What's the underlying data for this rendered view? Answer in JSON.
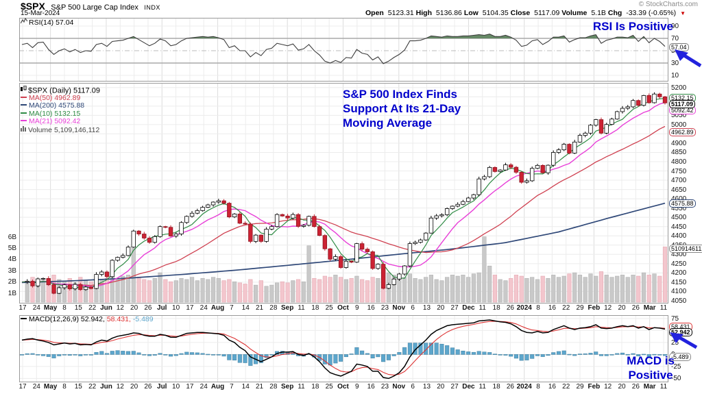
{
  "header": {
    "symbol": "$SPX",
    "name": "S&P 500 Large Cap Index",
    "exchange": "INDX",
    "date": "15-Mar-2024",
    "copyright": "© StockCharts.com",
    "quote": {
      "open_label": "Open",
      "open": "5123.31",
      "high_label": "High",
      "high": "5136.86",
      "low_label": "Low",
      "low": "5104.35",
      "close_label": "Close",
      "close": "5117.09",
      "volume_label": "Volume",
      "volume": "5.1B",
      "chg_label": "Chg",
      "chg": "-33.39 (-0.65%)",
      "chg_dir": "▼"
    }
  },
  "rsi_panel": {
    "legend": "RSI(14) 57.04",
    "annotation": "RSI Is Positive",
    "value_tag": "57.04"
  },
  "main_panel": {
    "legend_symbol": "$SPX (Daily) 5117.09",
    "legend_ma50": "MA(50) 4962.89",
    "legend_ma200": "MA(200) 4575.88",
    "legend_ma10": "MA(10) 5132.15",
    "legend_ma21": "MA(21) 5092.42",
    "legend_volume": "Volume 5,109,146,112",
    "annotation_lines": [
      "S&P 500 Index Finds",
      "Support At Its 21-Day",
      "Moving Average"
    ],
    "tags": {
      "ma10": "5132.15",
      "close": "5117.09",
      "ma21": "5092.42",
      "ma50": "4962.89",
      "ma200": "4575.88",
      "volume": "5109146112"
    }
  },
  "macd_panel": {
    "legend_name": "MACD(12,26,9)",
    "legend_macd": "52.942,",
    "legend_signal": "58.431,",
    "legend_hist": "-5.489",
    "annotation_lines": [
      "MACD is",
      "Positive"
    ],
    "tags": {
      "signal": "58.431",
      "macd": "52.942",
      "hist": "-5.489"
    }
  },
  "colors": {
    "up_candle": "#000000",
    "down_candle": "#cc2233",
    "ma10": "#2e8b44",
    "ma21": "#e83fd8",
    "ma50": "#cf4050",
    "ma200": "#2f4878",
    "rsi_line": "#3c3c3c",
    "rsi_fill": "#577d57",
    "macd_line": "#000000",
    "signal_line": "#dd3333",
    "hist_fill": "#5da6cc",
    "vol_up": "#c9c9c9",
    "vol_down": "#f3c6cd",
    "annotation": "#0000cc",
    "arrow": "#2222dd"
  },
  "chart_data": {
    "x_labels": [
      "17",
      "24",
      "May",
      "8",
      "15",
      "22",
      "Jun",
      "12",
      "20",
      "26",
      "Jul",
      "10",
      "17",
      "24",
      "Aug",
      "7",
      "14",
      "21",
      "28",
      "Sep",
      "11",
      "18",
      "25",
      "Oct",
      "9",
      "16",
      "23",
      "Nov",
      "6",
      "13",
      "20",
      "27",
      "Dec",
      "11",
      "18",
      "26",
      "2024",
      "8",
      "16",
      "22",
      "29",
      "Feb",
      "12",
      "20",
      "26",
      "Mar",
      "11"
    ],
    "rsi": {
      "type": "line",
      "name": "RSI(14)",
      "last": 57.04,
      "ylim": [
        0,
        100
      ],
      "overbought": 70,
      "midline": 50,
      "oversold": 30,
      "axis": [
        90,
        70,
        50,
        30,
        10
      ],
      "values": [
        60,
        62,
        55,
        63,
        64,
        52,
        44,
        50,
        53,
        48,
        52,
        47,
        50,
        49,
        60,
        62,
        57,
        65,
        66,
        67,
        70,
        73,
        68,
        63,
        58,
        62,
        69,
        66,
        58,
        60,
        66,
        70,
        71,
        72,
        73,
        72,
        73,
        71,
        68,
        55,
        58,
        50,
        50,
        40,
        47,
        42,
        52,
        54,
        62,
        60,
        58,
        61,
        51,
        53,
        60,
        50,
        43,
        33,
        30,
        34,
        31,
        39,
        38,
        52,
        46,
        44,
        35,
        40,
        29,
        33,
        39,
        44,
        51,
        66,
        66,
        67,
        70,
        74,
        73,
        72,
        74,
        73,
        73,
        74,
        74,
        75,
        76,
        75,
        77,
        73,
        73,
        75,
        72,
        67,
        57,
        59,
        66,
        68,
        60,
        65,
        72,
        72,
        74,
        64,
        68,
        71,
        71,
        74,
        76,
        62,
        67,
        69,
        72,
        72,
        71,
        75,
        65,
        73,
        63,
        70,
        65,
        57
      ]
    },
    "price": {
      "type": "candlestick",
      "last_close": 5117.09,
      "ylim": [
        4035,
        5225
      ],
      "axis": [
        5200,
        5150,
        5100,
        5050,
        5000,
        4950,
        4900,
        4850,
        4800,
        4750,
        4700,
        4650,
        4600,
        4550,
        4500,
        4450,
        4400,
        4350,
        4300,
        4250,
        4200,
        4150,
        4100,
        4050
      ],
      "ma200_anchors": [
        4148,
        4158,
        4172,
        4192,
        4215,
        4242,
        4270,
        4300,
        4328,
        4362,
        4420,
        4500,
        4576
      ],
      "closes": [
        4151,
        4155,
        4130,
        4168,
        4170,
        4136,
        4090,
        4120,
        4136,
        4114,
        4138,
        4110,
        4124,
        4116,
        4192,
        4205,
        4180,
        4268,
        4284,
        4294,
        4339,
        4426,
        4410,
        4388,
        4365,
        4396,
        4450,
        4446,
        4399,
        4410,
        4472,
        4505,
        4522,
        4536,
        4554,
        4567,
        4582,
        4589,
        4576,
        4502,
        4518,
        4468,
        4464,
        4370,
        4404,
        4370,
        4436,
        4450,
        4515,
        4507,
        4496,
        4515,
        4451,
        4457,
        4505,
        4450,
        4402,
        4330,
        4274,
        4288,
        4229,
        4263,
        4258,
        4358,
        4328,
        4314,
        4224,
        4247,
        4117,
        4137,
        4167,
        4194,
        4238,
        4358,
        4365,
        4378,
        4415,
        4496,
        4508,
        4514,
        4547,
        4560,
        4570,
        4585,
        4604,
        4622,
        4707,
        4719,
        4769,
        4747,
        4755,
        4783,
        4770,
        4743,
        4689,
        4697,
        4764,
        4780,
        4740,
        4781,
        4850,
        4864,
        4894,
        4846,
        4906,
        4942,
        4954,
        4997,
        5027,
        4954,
        5001,
        5030,
        5070,
        5088,
        5096,
        5130,
        5104,
        5157,
        5118,
        5165,
        5150,
        5117
      ]
    },
    "volume": {
      "type": "bar",
      "unit": "billions",
      "axis": [
        "6B",
        "5B",
        "4B",
        "3B",
        "2B",
        "1B"
      ],
      "axis_values": [
        6,
        5,
        4,
        3,
        2,
        1
      ],
      "values": [
        2.2,
        2.0,
        2.4,
        1.9,
        2.1,
        2.3,
        2.6,
        2.2,
        2.0,
        2.3,
        1.9,
        2.4,
        2.1,
        2.0,
        2.5,
        2.2,
        2.3,
        2.4,
        2.2,
        2.5,
        2.6,
        5.0,
        2.4,
        2.2,
        2.1,
        2.3,
        2.8,
        2.2,
        2.0,
        2.1,
        2.3,
        2.2,
        2.4,
        2.1,
        2.3,
        2.2,
        2.4,
        2.3,
        2.1,
        2.2,
        2.0,
        1.9,
        1.8,
        2.2,
        1.7,
        2.1,
        1.6,
        1.7,
        1.9,
        2.0,
        1.9,
        2.1,
        2.2,
        2.0,
        5.2,
        2.3,
        2.2,
        2.5,
        2.4,
        2.6,
        2.4,
        2.2,
        2.3,
        2.5,
        2.2,
        2.1,
        2.4,
        2.3,
        3.0,
        2.8,
        2.6,
        2.5,
        2.4,
        2.7,
        2.3,
        2.2,
        2.4,
        2.6,
        2.2,
        2.1,
        2.4,
        2.6,
        2.5,
        2.6,
        2.4,
        2.7,
        2.8,
        6.0,
        3.4,
        2.6,
        2.2,
        2.1,
        2.3,
        2.6,
        2.5,
        2.3,
        2.4,
        2.2,
        2.5,
        2.3,
        2.6,
        2.4,
        2.5,
        2.7,
        2.8,
        2.6,
        2.4,
        2.7,
        2.5,
        2.9,
        2.6,
        2.4,
        2.5,
        2.6,
        2.4,
        2.6,
        2.5,
        2.8,
        2.6,
        2.7,
        2.5,
        5.1
      ]
    },
    "macd": {
      "type": "line+histogram",
      "last_macd": 52.942,
      "last_signal": 58.431,
      "last_hist": -5.489,
      "ylim": [
        -58,
        82
      ],
      "axis": [
        75,
        50,
        25,
        0,
        -25,
        -50
      ],
      "values": [
        30,
        32,
        33,
        30,
        28,
        25,
        20,
        22,
        24,
        22,
        23,
        20,
        21,
        20,
        26,
        30,
        28,
        34,
        38,
        40,
        42,
        45,
        44,
        40,
        38,
        38,
        42,
        40,
        36,
        36,
        40,
        44,
        45,
        46,
        46,
        45,
        44,
        43,
        40,
        30,
        25,
        15,
        8,
        -5,
        -10,
        -15,
        -10,
        -5,
        2,
        5,
        5,
        6,
        0,
        -2,
        2,
        -5,
        -15,
        -28,
        -38,
        -42,
        -45,
        -40,
        -35,
        -20,
        -22,
        -25,
        -35,
        -35,
        -48,
        -50,
        -45,
        -38,
        -25,
        -5,
        10,
        20,
        30,
        42,
        50,
        55,
        60,
        62,
        63,
        64,
        65,
        66,
        70,
        71,
        72,
        70,
        68,
        67,
        64,
        58,
        50,
        46,
        45,
        48,
        45,
        46,
        52,
        56,
        60,
        55,
        52,
        55,
        56,
        58,
        62,
        55,
        54,
        55,
        58,
        60,
        58,
        60,
        55,
        58,
        52,
        56,
        55,
        52.9
      ]
    }
  }
}
